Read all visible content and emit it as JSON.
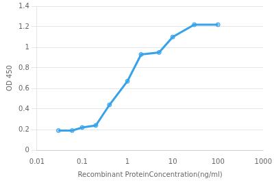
{
  "chart_data": {
    "type": "line",
    "x": [
      0.03,
      0.06,
      0.1,
      0.2,
      0.4,
      1.0,
      2.0,
      5.0,
      10.0,
      30.0,
      100.0
    ],
    "values": [
      0.19,
      0.19,
      0.22,
      0.24,
      0.44,
      0.67,
      0.93,
      0.95,
      1.1,
      1.22,
      1.22
    ],
    "xlabel": "Recombinant ProteinConcentration(ng/ml)",
    "ylabel": "OD 450",
    "log": "x",
    "xlim": [
      0.01,
      1000
    ],
    "xticks": [
      0.01,
      0.1,
      1,
      10,
      100,
      1000
    ],
    "ylim": [
      0,
      1.4
    ],
    "yticks": [
      0,
      0.2,
      0.4,
      0.6,
      0.8,
      1,
      1.2,
      1.4
    ],
    "grid": true,
    "marker": "circle"
  }
}
